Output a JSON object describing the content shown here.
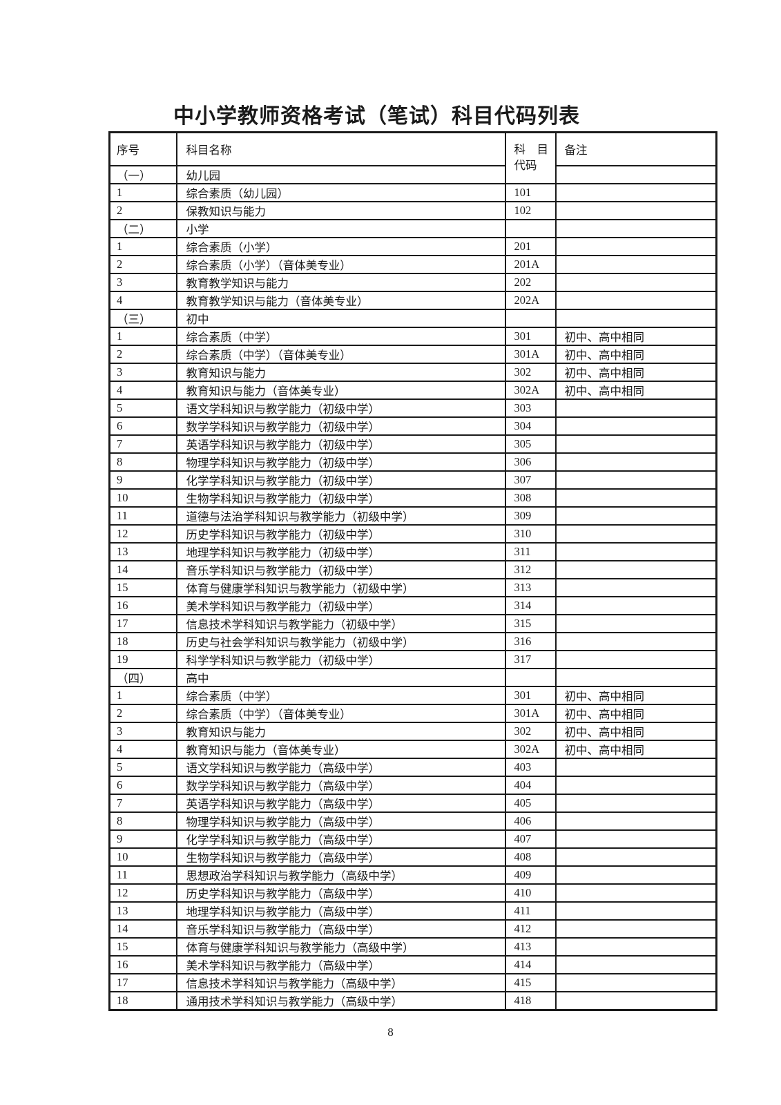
{
  "page": {
    "title": "中小学教师资格考试（笔试）科目代码列表",
    "page_number": "8"
  },
  "colors": {
    "text": "#1a1a1a",
    "border": "#1a1a1a",
    "background": "#ffffff"
  },
  "table": {
    "headers": {
      "no": "序号",
      "name": "科目名称",
      "code_line1": "科　目",
      "code_line2": "代码",
      "note": "备注"
    },
    "rows": [
      {
        "no": "（一）",
        "name": "幼儿园",
        "code": "",
        "note": "",
        "section": true,
        "merged_code": true
      },
      {
        "no": "1",
        "name": "综合素质（幼儿园）",
        "code": "101",
        "note": ""
      },
      {
        "no": "2",
        "name": "保教知识与能力",
        "code": "102",
        "note": ""
      },
      {
        "no": "（二）",
        "name": "小学",
        "code": "",
        "note": "",
        "section": true
      },
      {
        "no": "1",
        "name": "综合素质（小学）",
        "code": "201",
        "note": ""
      },
      {
        "no": "2",
        "name": "综合素质（小学）（音体美专业）",
        "code": "201A",
        "note": ""
      },
      {
        "no": "3",
        "name": "教育教学知识与能力",
        "code": "202",
        "note": ""
      },
      {
        "no": "4",
        "name": "教育教学知识与能力（音体美专业）",
        "code": "202A",
        "note": ""
      },
      {
        "no": "（三）",
        "name": "初中",
        "code": "",
        "note": "",
        "section": true
      },
      {
        "no": "1",
        "name": "综合素质（中学）",
        "code": "301",
        "note": "初中、高中相同"
      },
      {
        "no": "2",
        "name": "综合素质（中学）（音体美专业）",
        "code": "301A",
        "note": "初中、高中相同"
      },
      {
        "no": "3",
        "name": "教育知识与能力",
        "code": "302",
        "note": "初中、高中相同"
      },
      {
        "no": "4",
        "name": "教育知识与能力（音体美专业）",
        "code": "302A",
        "note": "初中、高中相同"
      },
      {
        "no": "5",
        "name": "语文学科知识与教学能力（初级中学）",
        "code": "303",
        "note": ""
      },
      {
        "no": "6",
        "name": "数学学科知识与教学能力（初级中学）",
        "code": "304",
        "note": ""
      },
      {
        "no": "7",
        "name": "英语学科知识与教学能力（初级中学）",
        "code": "305",
        "note": ""
      },
      {
        "no": "8",
        "name": "物理学科知识与教学能力（初级中学）",
        "code": "306",
        "note": ""
      },
      {
        "no": "9",
        "name": "化学学科知识与教学能力（初级中学）",
        "code": "307",
        "note": ""
      },
      {
        "no": "10",
        "name": "生物学科知识与教学能力（初级中学）",
        "code": "308",
        "note": ""
      },
      {
        "no": "11",
        "name": "道德与法治学科知识与教学能力（初级中学）",
        "code": "309",
        "note": ""
      },
      {
        "no": "12",
        "name": "历史学科知识与教学能力（初级中学）",
        "code": "310",
        "note": ""
      },
      {
        "no": "13",
        "name": "地理学科知识与教学能力（初级中学）",
        "code": "311",
        "note": ""
      },
      {
        "no": "14",
        "name": "音乐学科知识与教学能力（初级中学）",
        "code": "312",
        "note": ""
      },
      {
        "no": "15",
        "name": "体育与健康学科知识与教学能力（初级中学）",
        "code": "313",
        "note": ""
      },
      {
        "no": "16",
        "name": "美术学科知识与教学能力（初级中学）",
        "code": "314",
        "note": ""
      },
      {
        "no": "17",
        "name": "信息技术学科知识与教学能力（初级中学）",
        "code": "315",
        "note": ""
      },
      {
        "no": "18",
        "name": "历史与社会学科知识与教学能力（初级中学）",
        "code": "316",
        "note": ""
      },
      {
        "no": "19",
        "name": "科学学科知识与教学能力（初级中学）",
        "code": "317",
        "note": ""
      },
      {
        "no": "（四）",
        "name": "高中",
        "code": "",
        "note": "",
        "section": true
      },
      {
        "no": "1",
        "name": "综合素质（中学）",
        "code": "301",
        "note": "初中、高中相同"
      },
      {
        "no": "2",
        "name": "综合素质（中学）（音体美专业）",
        "code": "301A",
        "note": "初中、高中相同"
      },
      {
        "no": "3",
        "name": "教育知识与能力",
        "code": "302",
        "note": "初中、高中相同"
      },
      {
        "no": "4",
        "name": "教育知识与能力（音体美专业）",
        "code": "302A",
        "note": "初中、高中相同"
      },
      {
        "no": "5",
        "name": "语文学科知识与教学能力（高级中学）",
        "code": "403",
        "note": ""
      },
      {
        "no": "6",
        "name": "数学学科知识与教学能力（高级中学）",
        "code": "404",
        "note": ""
      },
      {
        "no": "7",
        "name": "英语学科知识与教学能力（高级中学）",
        "code": "405",
        "note": ""
      },
      {
        "no": "8",
        "name": "物理学科知识与教学能力（高级中学）",
        "code": "406",
        "note": ""
      },
      {
        "no": "9",
        "name": "化学学科知识与教学能力（高级中学）",
        "code": "407",
        "note": ""
      },
      {
        "no": "10",
        "name": "生物学科知识与教学能力（高级中学）",
        "code": "408",
        "note": ""
      },
      {
        "no": "11",
        "name": "思想政治学科知识与教学能力（高级中学）",
        "code": "409",
        "note": ""
      },
      {
        "no": "12",
        "name": "历史学科知识与教学能力（高级中学）",
        "code": "410",
        "note": ""
      },
      {
        "no": "13",
        "name": "地理学科知识与教学能力（高级中学）",
        "code": "411",
        "note": ""
      },
      {
        "no": "14",
        "name": "音乐学科知识与教学能力（高级中学）",
        "code": "412",
        "note": ""
      },
      {
        "no": "15",
        "name": "体育与健康学科知识与教学能力（高级中学）",
        "code": "413",
        "note": ""
      },
      {
        "no": "16",
        "name": "美术学科知识与教学能力（高级中学）",
        "code": "414",
        "note": ""
      },
      {
        "no": "17",
        "name": "信息技术学科知识与教学能力（高级中学）",
        "code": "415",
        "note": ""
      },
      {
        "no": "18",
        "name": "通用技术学科知识与教学能力（高级中学）",
        "code": "418",
        "note": ""
      }
    ]
  }
}
